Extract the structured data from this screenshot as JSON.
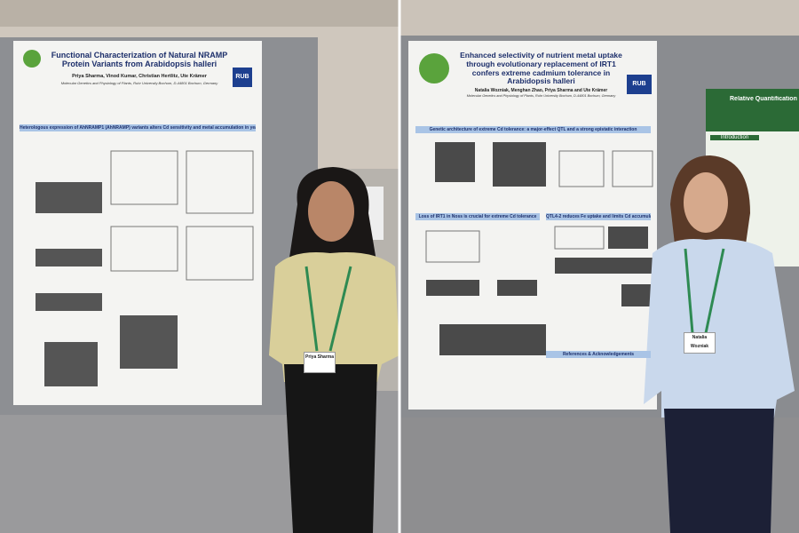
{
  "photos": [
    {
      "poster": {
        "title": "Functional Characterization of Natural NRAMP Protein Variants from Arabidopsis halleri",
        "authors": "Priya Sharma, Vinod Kumar, Christian Hertlitz, Ute Krämer",
        "affiliation": "Molecular Genetics and Physiology of Plants, Ruhr University Bochum, D-44801 Bochum, Germany",
        "logo": "RUB",
        "sections": [
          "Heterologous expression of AhNRAMP1 (AhNRAMP) variants alters Cd sensitivity and metal accumulation in yeast"
        ]
      },
      "badge": "Priya Sharma"
    },
    {
      "poster": {
        "title": "Enhanced selectivity of nutrient metal uptake through evolutionary replacement of IRT1 confers extreme cadmium tolerance in Arabidopsis halleri",
        "authors": "Natalia Wozniak, Menghan Zhao, Priya Sharma and Ute Krämer",
        "affiliation": "Molecular Genetics and Physiology of Plants, Ruhr University Bochum, D-44801 Bochum, Germany",
        "logo": "RUB",
        "sections": [
          "Genetic architecture of extreme Cd tolerance: a major-effect QTL and a strong epistatic interaction",
          "Loss of IRT1 in Noss is crucial for extreme Cd tolerance",
          "QTL4-2 reduces Fe uptake and limits Cd accumulation",
          "References & Acknowledgements"
        ]
      },
      "badge": "Natalia Wozniak"
    }
  ],
  "background_poster": {
    "title": "Relative Quantification of ... on Sorghum b...",
    "section": "Introduction"
  }
}
